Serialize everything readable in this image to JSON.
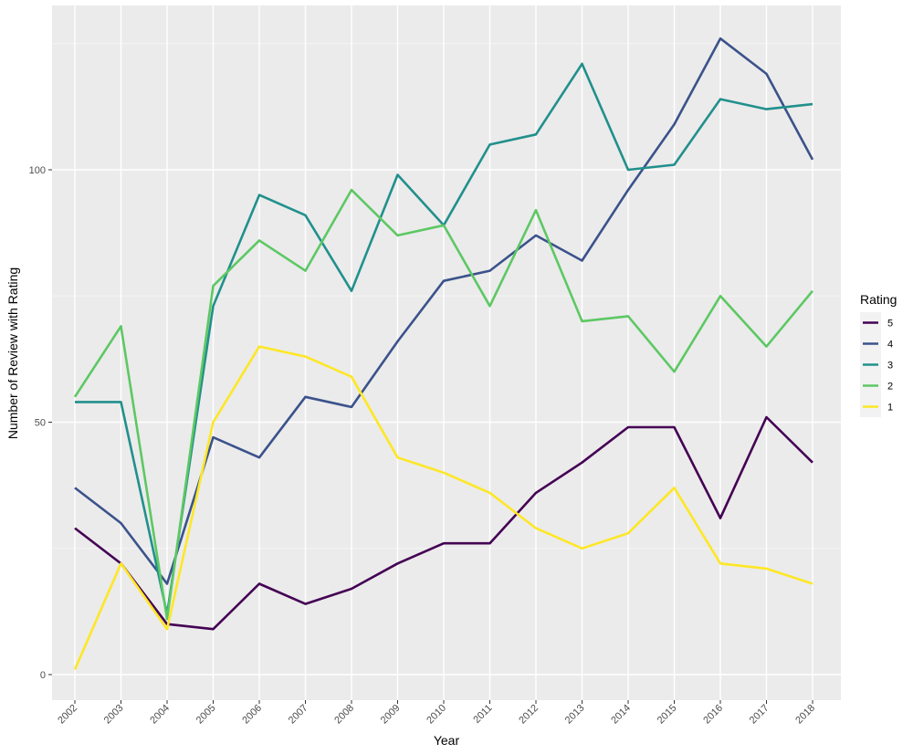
{
  "chart_data": {
    "type": "line",
    "title": "",
    "xlabel": "Year",
    "ylabel": "Number of Review with Rating",
    "x": [
      "2002",
      "2003",
      "2004",
      "2005",
      "2006",
      "2007",
      "2008",
      "2009",
      "2010",
      "2011",
      "2012",
      "2013",
      "2014",
      "2015",
      "2016",
      "2017",
      "2018"
    ],
    "ylim": [
      -5,
      132
    ],
    "y_ticks": [
      0,
      50,
      100
    ],
    "grid": true,
    "legend": {
      "title": "Rating",
      "position": "right"
    },
    "series": [
      {
        "name": "5",
        "color": "#440154",
        "values": [
          29,
          22,
          10,
          9,
          18,
          14,
          17,
          22,
          26,
          26,
          36,
          42,
          49,
          49,
          31,
          51,
          42
        ]
      },
      {
        "name": "4",
        "color": "#3b528b",
        "values": [
          37,
          30,
          18,
          47,
          43,
          55,
          53,
          66,
          78,
          80,
          87,
          82,
          96,
          109,
          126,
          119,
          102
        ]
      },
      {
        "name": "3",
        "color": "#21908c",
        "values": [
          54,
          54,
          12,
          73,
          95,
          91,
          76,
          99,
          89,
          105,
          107,
          121,
          100,
          101,
          114,
          112,
          113
        ]
      },
      {
        "name": "2",
        "color": "#5dc863",
        "values": [
          55,
          69,
          11,
          77,
          86,
          80,
          96,
          87,
          89,
          73,
          92,
          70,
          71,
          60,
          75,
          65,
          76
        ]
      },
      {
        "name": "1",
        "color": "#fde725",
        "values": [
          1,
          22,
          9,
          50,
          65,
          63,
          59,
          43,
          40,
          36,
          29,
          25,
          28,
          37,
          22,
          21,
          18
        ]
      }
    ]
  }
}
